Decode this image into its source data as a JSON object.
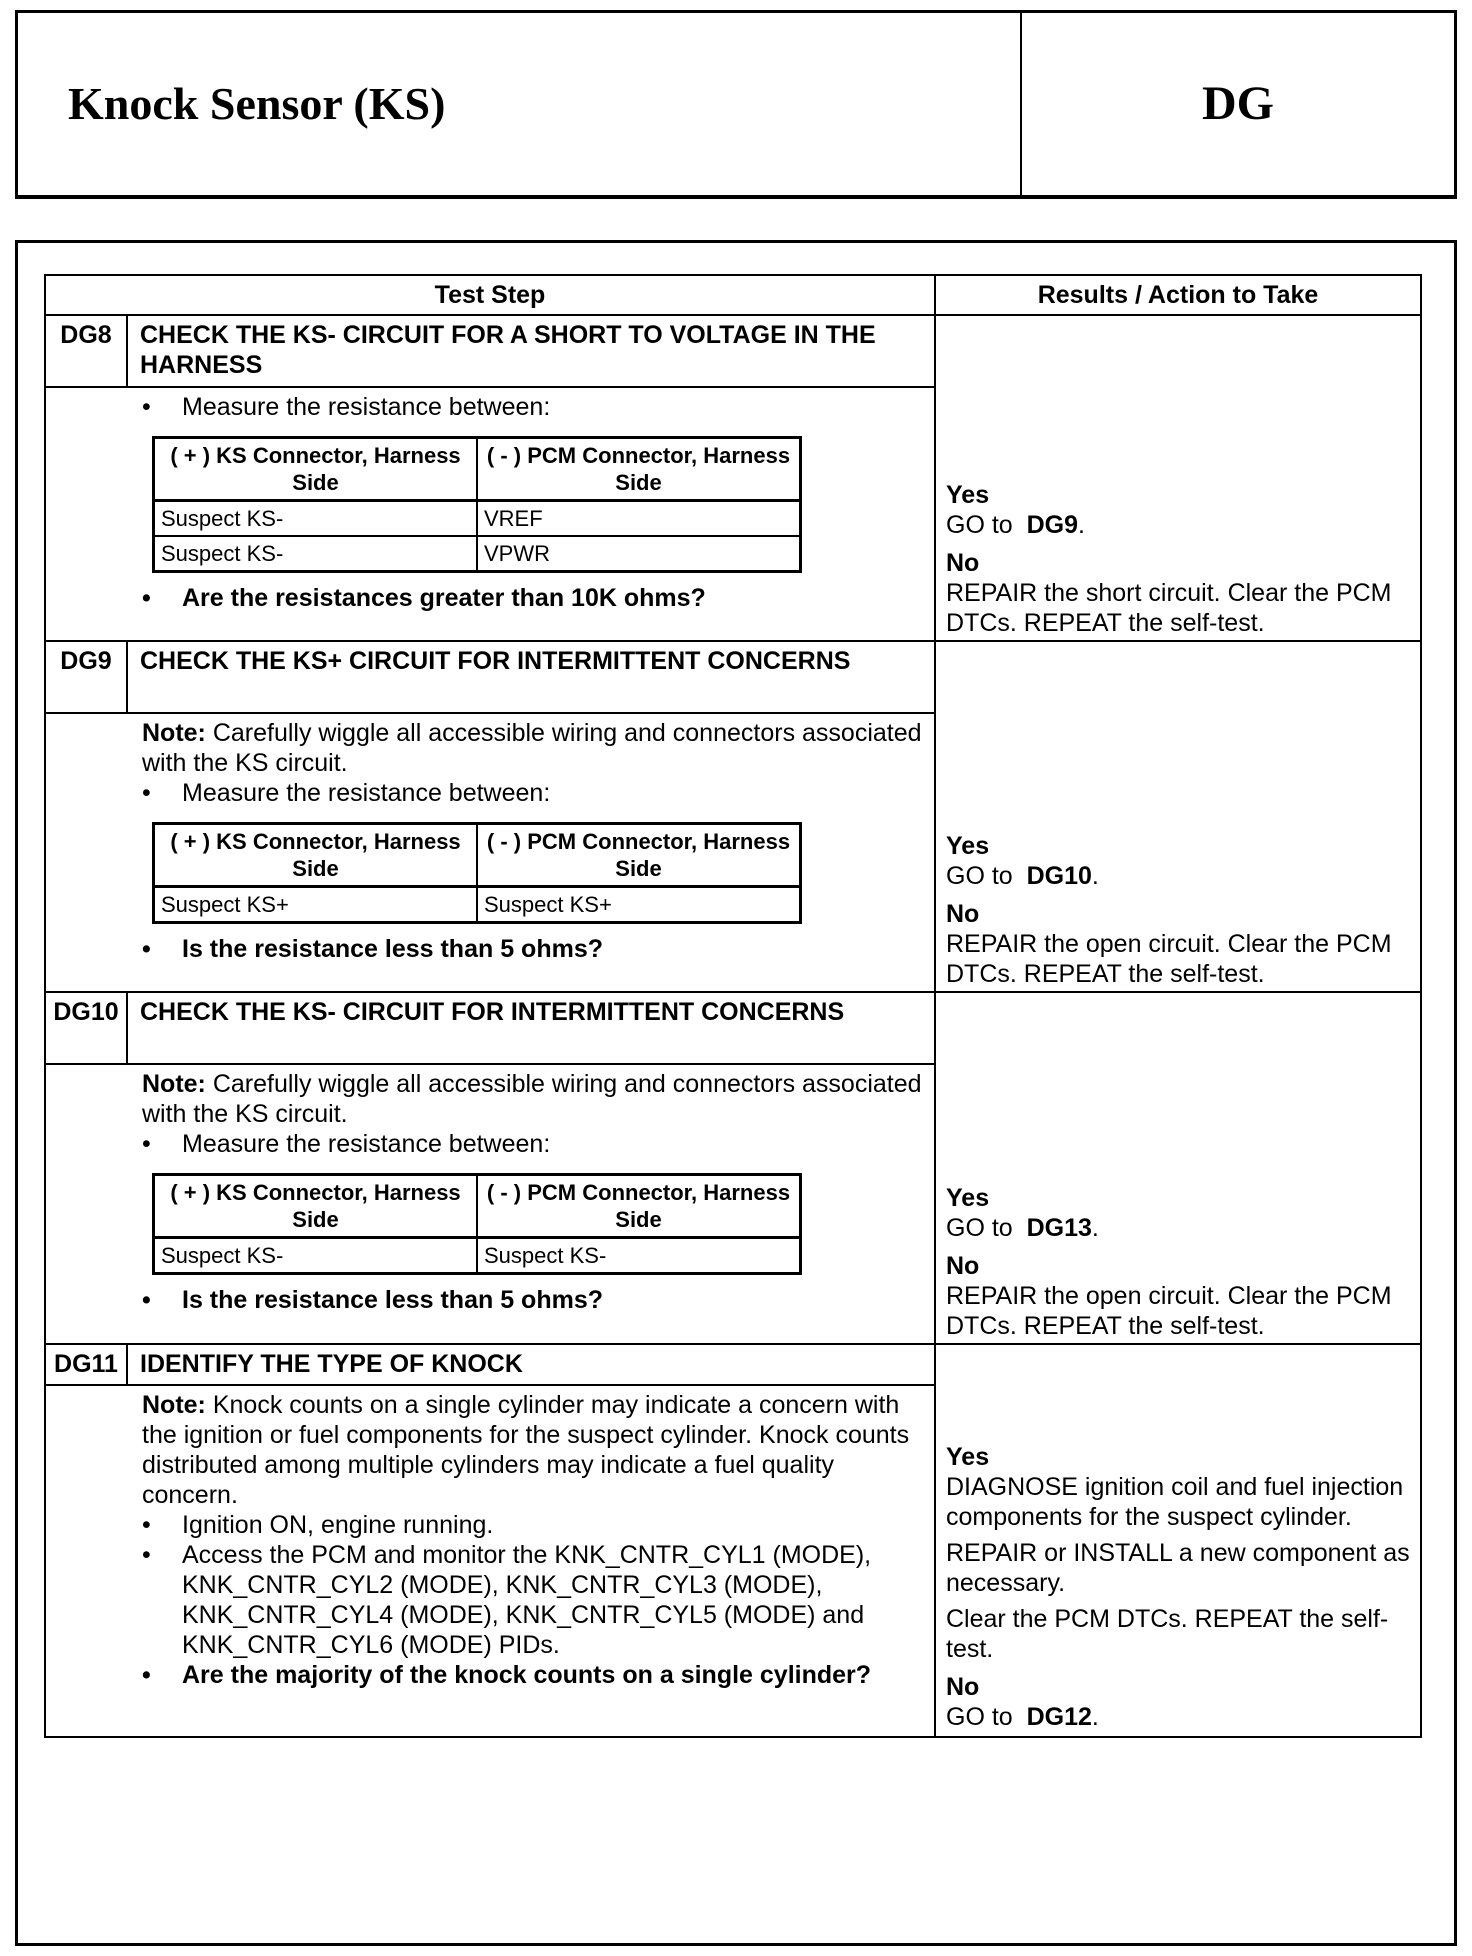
{
  "header": {
    "title": "Knock Sensor (KS)",
    "code": "DG"
  },
  "table": {
    "columns": [
      "Test Step",
      "Results / Action to Take"
    ],
    "steps": [
      {
        "id": "DG8",
        "title": "CHECK THE KS- CIRCUIT FOR A SHORT TO VOLTAGE IN THE HARNESS",
        "measure": "Measure the resistance between:",
        "sub_headers": [
          "( + ) KS Connector, Harness Side",
          "( - ) PCM Connector, Harness Side"
        ],
        "sub_rows": [
          [
            "Suspect KS-",
            "VREF"
          ],
          [
            "Suspect KS-",
            "VPWR"
          ]
        ],
        "question": "Are the resistances greater than 10K ohms?",
        "yes_label": "Yes",
        "yes_text": "GO to",
        "yes_target": "DG9",
        "no_label": "No",
        "no_text": "REPAIR the short circuit. Clear the PCM DTCs. REPEAT the self-test."
      },
      {
        "id": "DG9",
        "title": "CHECK THE KS+ CIRCUIT FOR INTERMITTENT CONCERNS",
        "note_label": "Note:",
        "note": "Carefully wiggle all accessible wiring and connectors associated with the KS circuit.",
        "measure": "Measure the resistance between:",
        "sub_headers": [
          "( + ) KS Connector, Harness Side",
          "( - ) PCM Connector, Harness Side"
        ],
        "sub_rows": [
          [
            "Suspect KS+",
            "Suspect KS+"
          ]
        ],
        "question": "Is the resistance less than 5 ohms?",
        "yes_label": "Yes",
        "yes_text": "GO to",
        "yes_target": "DG10",
        "no_label": "No",
        "no_text": "REPAIR the open circuit. Clear the PCM DTCs. REPEAT the self-test."
      },
      {
        "id": "DG10",
        "title": "CHECK THE KS- CIRCUIT FOR INTERMITTENT CONCERNS",
        "note_label": "Note:",
        "note": "Carefully wiggle all accessible wiring and connectors associated with the KS circuit.",
        "measure": "Measure the resistance between:",
        "sub_headers": [
          "( + ) KS Connector, Harness Side",
          "( - ) PCM Connector, Harness Side"
        ],
        "sub_rows": [
          [
            "Suspect KS-",
            "Suspect KS-"
          ]
        ],
        "question": "Is the resistance less than 5 ohms?",
        "yes_label": "Yes",
        "yes_text": "GO to",
        "yes_target": "DG13",
        "no_label": "No",
        "no_text": "REPAIR the open circuit. Clear the PCM DTCs. REPEAT the self-test."
      },
      {
        "id": "DG11",
        "title": "IDENTIFY THE TYPE OF KNOCK",
        "note_label": "Note:",
        "note": "Knock counts on a single cylinder may indicate a concern with the ignition or fuel components for the suspect cylinder. Knock counts distributed among multiple cylinders may indicate a fuel quality concern.",
        "bullets": [
          "Ignition ON, engine running.",
          "Access the PCM and monitor the KNK_CNTR_CYL1 (MODE), KNK_CNTR_CYL2 (MODE), KNK_CNTR_CYL3 (MODE), KNK_CNTR_CYL4 (MODE), KNK_CNTR_CYL5 (MODE) and KNK_CNTR_CYL6 (MODE) PIDs."
        ],
        "question": "Are the majority of the knock counts on a single cylinder?",
        "yes_label": "Yes",
        "yes_lines": [
          "DIAGNOSE ignition coil and fuel injection components for the suspect cylinder.",
          "REPAIR or INSTALL a new component as necessary.",
          "Clear the PCM DTCs. REPEAT the self-test."
        ],
        "no_label": "No",
        "no_text": "GO to",
        "no_target": "DG12"
      }
    ]
  }
}
